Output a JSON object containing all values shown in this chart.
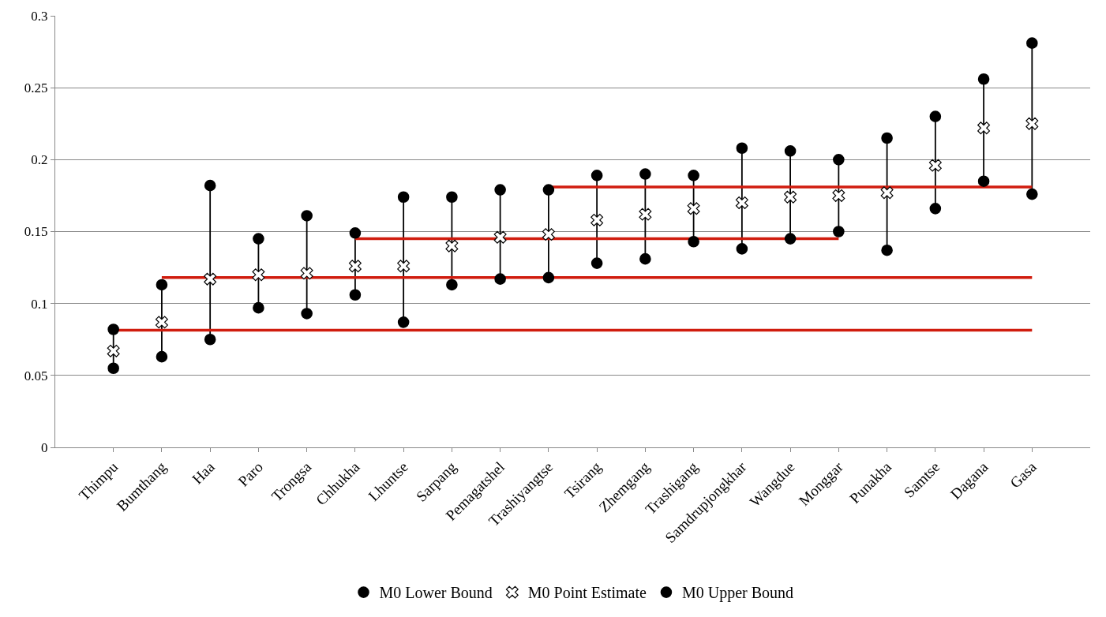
{
  "chart_data": {
    "type": "scatter",
    "categories": [
      "Thimpu",
      "Bumthang",
      "Haa",
      "Paro",
      "Trongsa",
      "Chhukha",
      "Lhuntse",
      "Sarpang",
      "Pemagatshel",
      "Trashiyangtse",
      "Tsirang",
      "Zhemgang",
      "Trashigang",
      "Samdrupjongkhar",
      "Wangdue",
      "Monggar",
      "Punakha",
      "Samtse",
      "Dagana",
      "Gasa"
    ],
    "series": [
      {
        "type": "line",
        "color": "#000000",
        "x": [
          "Thimpu",
          "Thimpu"
        ],
        "values": [
          0.055,
          0.082
        ]
      },
      {
        "type": "line",
        "color": "#000000",
        "x": [
          "Bumthang",
          "Bumthang"
        ],
        "values": [
          0.063,
          0.113
        ]
      },
      {
        "type": "line",
        "color": "#000000",
        "x": [
          "Haa",
          "Haa"
        ],
        "values": [
          0.075,
          0.182
        ]
      },
      {
        "type": "line",
        "color": "#000000",
        "x": [
          "Paro",
          "Paro"
        ],
        "values": [
          0.097,
          0.145
        ]
      },
      {
        "type": "line",
        "color": "#000000",
        "x": [
          "Trongsa",
          "Trongsa"
        ],
        "values": [
          0.093,
          0.161
        ]
      },
      {
        "type": "line",
        "color": "#000000",
        "x": [
          "Chhukha",
          "Chhukha"
        ],
        "values": [
          0.106,
          0.149
        ]
      },
      {
        "type": "line",
        "color": "#000000",
        "x": [
          "Lhuntse",
          "Lhuntse"
        ],
        "values": [
          0.087,
          0.174
        ]
      },
      {
        "type": "line",
        "color": "#000000",
        "x": [
          "Sarpang",
          "Sarpang"
        ],
        "values": [
          0.113,
          0.174
        ]
      },
      {
        "type": "line",
        "color": "#000000",
        "x": [
          "Pemagatshel",
          "Pemagatshel"
        ],
        "values": [
          0.117,
          0.179
        ]
      },
      {
        "type": "line",
        "color": "#000000",
        "x": [
          "Trashiyangtse",
          "Trashiyangtse"
        ],
        "values": [
          0.118,
          0.179
        ]
      },
      {
        "type": "line",
        "color": "#000000",
        "x": [
          "Tsirang",
          "Tsirang"
        ],
        "values": [
          0.128,
          0.189
        ]
      },
      {
        "type": "line",
        "color": "#000000",
        "x": [
          "Zhemgang",
          "Zhemgang"
        ],
        "values": [
          0.131,
          0.19
        ]
      },
      {
        "type": "line",
        "color": "#000000",
        "x": [
          "Trashigang",
          "Trashigang"
        ],
        "values": [
          0.143,
          0.189
        ]
      },
      {
        "type": "line",
        "color": "#000000",
        "x": [
          "Samdrupjongkhar",
          "Samdrupjongkhar"
        ],
        "values": [
          0.138,
          0.208
        ]
      },
      {
        "type": "line",
        "color": "#000000",
        "x": [
          "Wangdue",
          "Wangdue"
        ],
        "values": [
          0.145,
          0.206
        ]
      },
      {
        "type": "line",
        "color": "#000000",
        "x": [
          "Monggar",
          "Monggar"
        ],
        "values": [
          0.15,
          0.2
        ]
      },
      {
        "type": "line",
        "color": "#000000",
        "x": [
          "Punakha",
          "Punakha"
        ],
        "values": [
          0.137,
          0.215
        ]
      },
      {
        "type": "line",
        "color": "#000000",
        "x": [
          "Samtse",
          "Samtse"
        ],
        "values": [
          0.166,
          0.23
        ]
      },
      {
        "type": "line",
        "color": "#000000",
        "x": [
          "Dagana",
          "Dagana"
        ],
        "values": [
          0.185,
          0.256
        ]
      },
      {
        "type": "line",
        "color": "#000000",
        "x": [
          "Gasa",
          "Gasa"
        ],
        "values": [
          0.176,
          0.281
        ]
      },
      {
        "type": "line",
        "color": "#d01c0e",
        "x": [
          "Thimpu",
          "Gasa"
        ],
        "values": [
          0.0815,
          0.0815
        ]
      },
      {
        "type": "line",
        "color": "#d01c0e",
        "x": [
          "Bumthang",
          "Gasa"
        ],
        "values": [
          0.118,
          0.118
        ]
      },
      {
        "type": "line",
        "color": "#d01c0e",
        "x": [
          "Chhukha",
          "Monggar"
        ],
        "values": [
          0.145,
          0.145
        ]
      },
      {
        "type": "line",
        "color": "#d01c0e",
        "x": [
          "Trashiyangtse",
          "Gasa"
        ],
        "values": [
          0.181,
          0.181
        ]
      },
      {
        "name": "M0 Lower Bound",
        "color": "#000000",
        "marker": "circle",
        "values": [
          0.055,
          0.063,
          0.075,
          0.097,
          0.093,
          0.106,
          0.087,
          0.113,
          0.117,
          0.118,
          0.128,
          0.131,
          0.143,
          0.138,
          0.145,
          0.15,
          0.137,
          0.166,
          0.185,
          0.176
        ]
      },
      {
        "name": "M0 Point Estimate",
        "color": "#000000",
        "marker": "cross",
        "values": [
          0.067,
          0.087,
          0.117,
          0.12,
          0.121,
          0.126,
          0.126,
          0.14,
          0.146,
          0.148,
          0.158,
          0.162,
          0.166,
          0.17,
          0.174,
          0.175,
          0.177,
          0.196,
          0.222,
          0.225
        ]
      },
      {
        "name": "M0 Upper Bound",
        "color": "#000000",
        "marker": "circle",
        "values": [
          0.082,
          0.113,
          0.182,
          0.145,
          0.161,
          0.149,
          0.174,
          0.174,
          0.179,
          0.179,
          0.189,
          0.19,
          0.189,
          0.208,
          0.206,
          0.2,
          0.215,
          0.23,
          0.256,
          0.281
        ]
      }
    ],
    "ylim": [
      0,
      0.3
    ],
    "yticks": [
      0,
      0.05,
      0.1,
      0.15,
      0.2,
      0.25,
      0.3
    ],
    "grid": "y",
    "legend": "bottom"
  }
}
